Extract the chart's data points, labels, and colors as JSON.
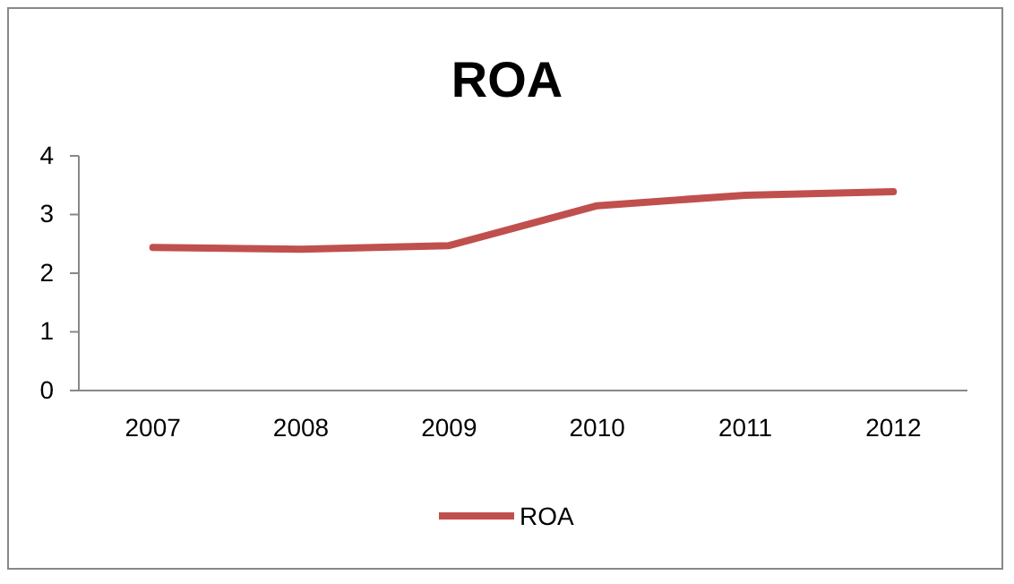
{
  "chart_data": {
    "type": "line",
    "title": "ROA",
    "categories": [
      "2007",
      "2008",
      "2009",
      "2010",
      "2011",
      "2012"
    ],
    "series": [
      {
        "name": "ROA",
        "color": "#c0504d",
        "values": [
          2.44,
          2.41,
          2.47,
          3.15,
          3.33,
          3.39
        ]
      }
    ],
    "ylim": [
      0,
      4
    ],
    "yticks": [
      0,
      1,
      2,
      3,
      4
    ],
    "grid": false,
    "legend": "bottom",
    "marker": "none",
    "line_style": "solid"
  }
}
